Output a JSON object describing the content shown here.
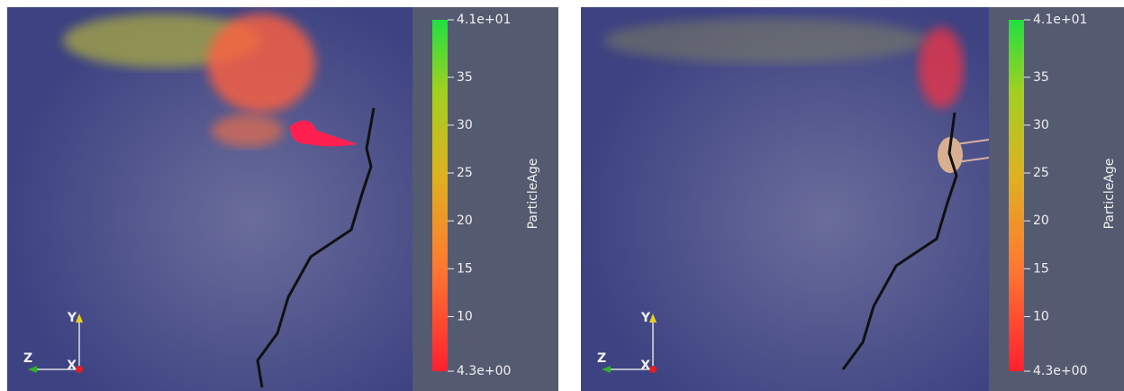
{
  "panels": [
    {
      "colorbar": {
        "title": "ParticleAge",
        "range": [
          4.3,
          41
        ],
        "ticks": [
          {
            "value": 41,
            "label": "4.1e+01"
          },
          35,
          30,
          25,
          20,
          15,
          10,
          {
            "value": 4.3,
            "label": "4.3e+00"
          }
        ]
      },
      "axes": {
        "y": "Y",
        "z": "Z",
        "x": "X"
      }
    },
    {
      "colorbar": {
        "title": "ParticleAge",
        "range": [
          4.3,
          41
        ],
        "ticks": [
          {
            "value": 41,
            "label": "4.1e+01"
          },
          35,
          30,
          25,
          20,
          15,
          10,
          {
            "value": 4.3,
            "label": "4.3e+00"
          }
        ]
      },
      "axes": {
        "y": "Y",
        "z": "Z",
        "x": "X"
      }
    }
  ]
}
